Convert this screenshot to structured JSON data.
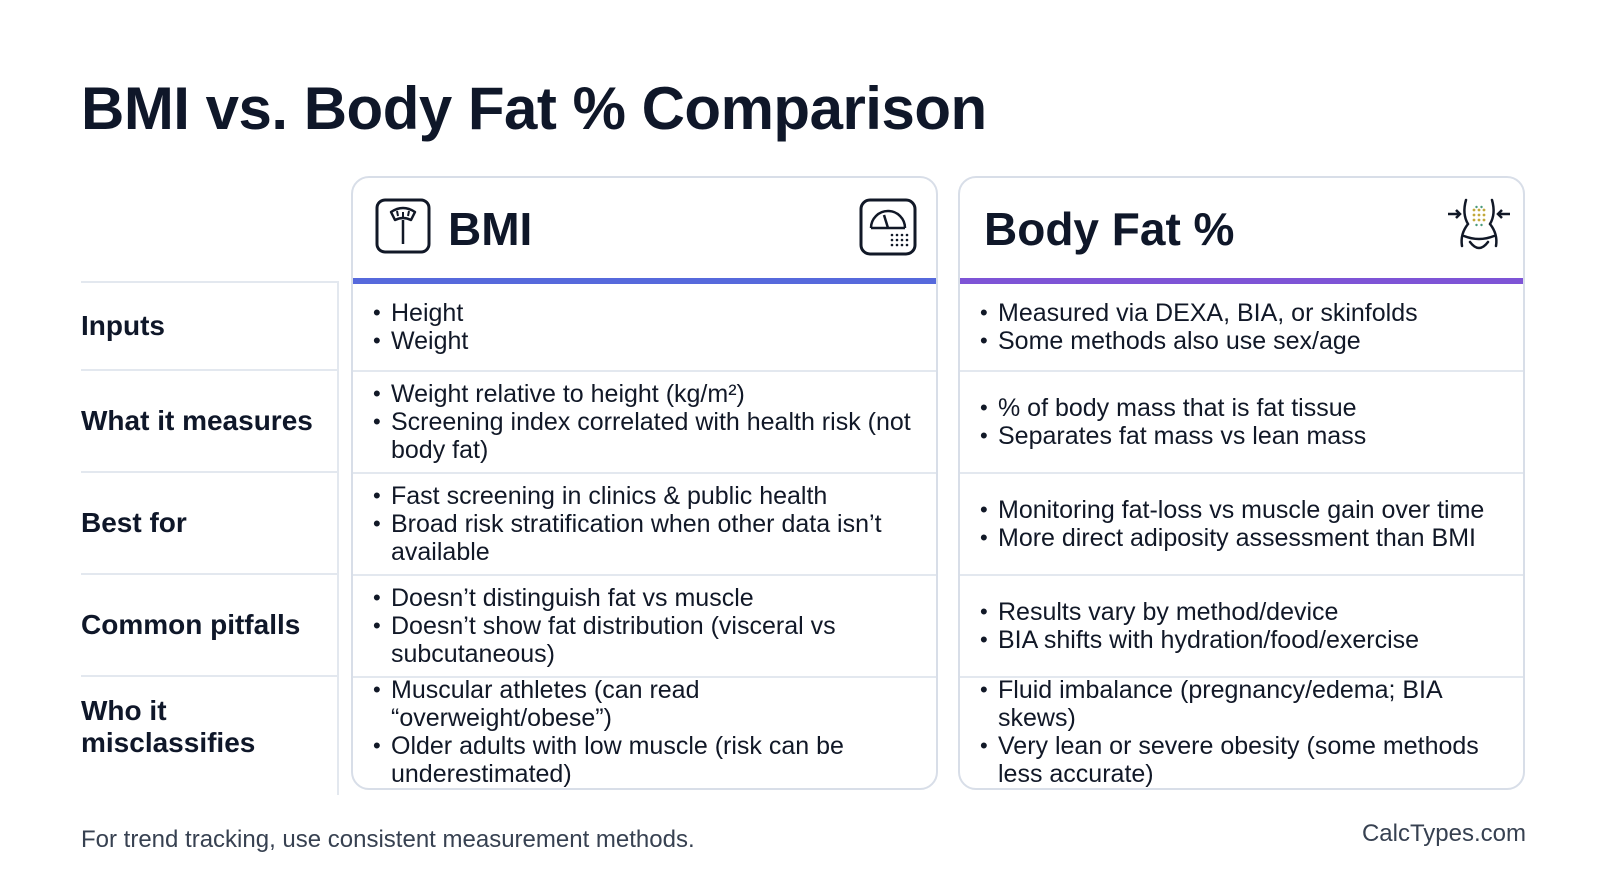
{
  "title": "BMI vs. Body Fat % Comparison",
  "row_labels": [
    "Inputs",
    "What it measures",
    "Best for",
    "Common pitfalls",
    "Who it misclassifies"
  ],
  "columns": [
    {
      "name": "BMI",
      "icon_left": "scale-icon",
      "icon_right": "gauge-scale-icon",
      "accent_color": "#5669dc",
      "rows": [
        [
          "Height",
          "Weight"
        ],
        [
          "Weight relative to height (kg/m²)",
          "Screening index correlated with health risk (not body fat)"
        ],
        [
          "Fast screening in clinics & public health",
          "Broad risk stratification when other data isn’t available"
        ],
        [
          "Doesn’t distinguish fat vs muscle",
          "Doesn’t show fat distribution (visceral vs subcutaneous)"
        ],
        [
          "Muscular athletes (can read “overweight/obese”)",
          "Older adults with low muscle (risk can be underestimated)"
        ]
      ]
    },
    {
      "name": "Body Fat %",
      "icon_right": "waist-measure-icon",
      "accent_color": "#7e54d6",
      "rows": [
        [
          "Measured via DEXA, BIA, or skinfolds",
          "Some methods also use sex/age"
        ],
        [
          "% of body mass that is fat tissue",
          "Separates fat mass vs lean mass"
        ],
        [
          "Monitoring fat-loss vs muscle gain over time",
          "More direct adiposity assessment than BMI"
        ],
        [
          "Results vary by method/device",
          "BIA shifts with hydration/food/exercise"
        ],
        [
          "Fluid imbalance (pregnancy/edema; BIA skews)",
          "Very lean or severe obesity (some methods less accurate)"
        ]
      ]
    }
  ],
  "footnote": "For trend tracking, use consistent measurement methods.",
  "brand": "CalcTypes.com"
}
